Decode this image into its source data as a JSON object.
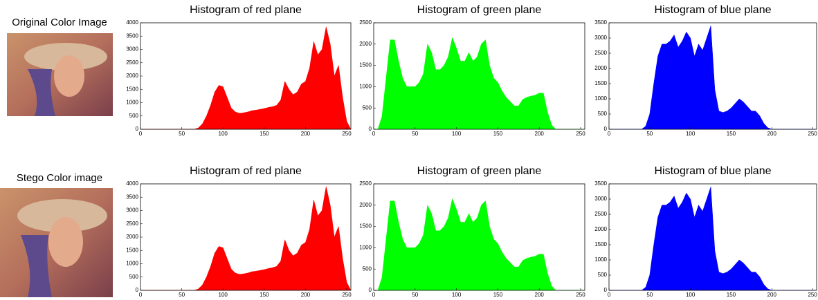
{
  "row_labels": [
    "Original Color Image",
    "Stego Color image"
  ],
  "chart_data": [
    {
      "type": "area",
      "title": "Histogram of red plane",
      "color": "#ff0000",
      "x": [
        0,
        5,
        10,
        15,
        20,
        25,
        30,
        35,
        40,
        45,
        50,
        55,
        60,
        65,
        70,
        75,
        80,
        85,
        90,
        95,
        100,
        105,
        110,
        115,
        120,
        125,
        130,
        135,
        140,
        145,
        150,
        155,
        160,
        165,
        170,
        175,
        180,
        185,
        190,
        195,
        200,
        205,
        210,
        215,
        220,
        225,
        230,
        235,
        240,
        245,
        250,
        255
      ],
      "values": [
        0,
        0,
        0,
        0,
        0,
        0,
        0,
        0,
        0,
        0,
        0,
        0,
        0,
        0,
        50,
        200,
        500,
        900,
        1400,
        1650,
        1600,
        1200,
        800,
        650,
        600,
        620,
        650,
        700,
        720,
        750,
        780,
        820,
        850,
        900,
        1100,
        1800,
        1500,
        1300,
        1400,
        1700,
        1800,
        2300,
        3300,
        2800,
        3000,
        3850,
        3200,
        2000,
        2400,
        1200,
        300,
        0
      ],
      "xlim": [
        0,
        255
      ],
      "ylim": [
        0,
        4000
      ],
      "xticks": [
        0,
        50,
        100,
        150,
        200,
        250
      ],
      "yticks": [
        0,
        500,
        1000,
        1500,
        2000,
        2500,
        3000,
        3500,
        4000
      ]
    },
    {
      "type": "area",
      "title": "Histogram of green plane",
      "color": "#00ff00",
      "x": [
        0,
        5,
        10,
        15,
        20,
        25,
        30,
        35,
        40,
        45,
        50,
        55,
        60,
        65,
        70,
        75,
        80,
        85,
        90,
        95,
        100,
        105,
        110,
        115,
        120,
        125,
        130,
        135,
        140,
        145,
        150,
        155,
        160,
        165,
        170,
        175,
        180,
        185,
        190,
        195,
        200,
        205,
        210,
        215,
        220,
        225,
        230,
        235,
        240,
        245,
        250,
        255
      ],
      "values": [
        0,
        0,
        300,
        1200,
        2100,
        2100,
        1600,
        1200,
        1000,
        1000,
        1000,
        1100,
        1300,
        2000,
        1800,
        1400,
        1400,
        1500,
        1700,
        2150,
        1900,
        1600,
        1600,
        1800,
        1600,
        1700,
        2000,
        2100,
        1500,
        1200,
        1100,
        900,
        750,
        650,
        550,
        550,
        700,
        750,
        780,
        800,
        850,
        850,
        400,
        100,
        0,
        0,
        0,
        0,
        0,
        0,
        0,
        0
      ],
      "xlim": [
        0,
        255
      ],
      "ylim": [
        0,
        2500
      ],
      "xticks": [
        0,
        50,
        100,
        150,
        200,
        250
      ],
      "yticks": [
        0,
        500,
        1000,
        1500,
        2000,
        2500
      ]
    },
    {
      "type": "area",
      "title": "Histogram of blue plane",
      "color": "#0000ff",
      "x": [
        0,
        5,
        10,
        15,
        20,
        25,
        30,
        35,
        40,
        45,
        50,
        55,
        60,
        65,
        70,
        75,
        80,
        85,
        90,
        95,
        100,
        105,
        110,
        115,
        120,
        125,
        130,
        135,
        140,
        145,
        150,
        155,
        160,
        165,
        170,
        175,
        180,
        185,
        190,
        195,
        200,
        205,
        210,
        215,
        220,
        225,
        230,
        235,
        240,
        245,
        250,
        255
      ],
      "values": [
        0,
        0,
        0,
        0,
        0,
        0,
        0,
        0,
        0,
        100,
        500,
        1500,
        2400,
        2800,
        2800,
        2900,
        3100,
        2700,
        2900,
        3200,
        3000,
        2400,
        2800,
        2600,
        3000,
        3400,
        1300,
        600,
        550,
        600,
        700,
        850,
        1000,
        900,
        750,
        600,
        600,
        450,
        200,
        50,
        0,
        0,
        0,
        0,
        0,
        0,
        0,
        0,
        0,
        0,
        0,
        0
      ],
      "xlim": [
        0,
        255
      ],
      "ylim": [
        0,
        3500
      ],
      "xticks": [
        0,
        50,
        100,
        150,
        200,
        250
      ],
      "yticks": [
        0,
        500,
        1000,
        1500,
        2000,
        2500,
        3000,
        3500
      ]
    },
    {
      "type": "area",
      "title": "Histogram of red plane",
      "color": "#ff0000",
      "x": [
        0,
        5,
        10,
        15,
        20,
        25,
        30,
        35,
        40,
        45,
        50,
        55,
        60,
        65,
        70,
        75,
        80,
        85,
        90,
        95,
        100,
        105,
        110,
        115,
        120,
        125,
        130,
        135,
        140,
        145,
        150,
        155,
        160,
        165,
        170,
        175,
        180,
        185,
        190,
        195,
        200,
        205,
        210,
        215,
        220,
        225,
        230,
        235,
        240,
        245,
        250,
        255
      ],
      "values": [
        0,
        0,
        0,
        0,
        0,
        0,
        0,
        0,
        0,
        0,
        0,
        0,
        0,
        0,
        50,
        200,
        500,
        900,
        1400,
        1650,
        1600,
        1200,
        800,
        650,
        600,
        620,
        650,
        700,
        720,
        750,
        780,
        820,
        850,
        900,
        1100,
        1900,
        1500,
        1300,
        1400,
        1700,
        1800,
        2300,
        3400,
        2800,
        3000,
        3900,
        3200,
        2000,
        2400,
        1200,
        300,
        0
      ],
      "xlim": [
        0,
        255
      ],
      "ylim": [
        0,
        4000
      ],
      "xticks": [
        0,
        50,
        100,
        150,
        200,
        250
      ],
      "yticks": [
        0,
        500,
        1000,
        1500,
        2000,
        2500,
        3000,
        3500,
        4000
      ]
    },
    {
      "type": "area",
      "title": "Histogram of green plane",
      "color": "#00ff00",
      "x": [
        0,
        5,
        10,
        15,
        20,
        25,
        30,
        35,
        40,
        45,
        50,
        55,
        60,
        65,
        70,
        75,
        80,
        85,
        90,
        95,
        100,
        105,
        110,
        115,
        120,
        125,
        130,
        135,
        140,
        145,
        150,
        155,
        160,
        165,
        170,
        175,
        180,
        185,
        190,
        195,
        200,
        205,
        210,
        215,
        220,
        225,
        230,
        235,
        240,
        245,
        250,
        255
      ],
      "values": [
        0,
        0,
        300,
        1200,
        2100,
        2100,
        1600,
        1200,
        1000,
        1000,
        1000,
        1100,
        1300,
        2000,
        1800,
        1400,
        1400,
        1500,
        1700,
        2150,
        1900,
        1600,
        1600,
        1800,
        1600,
        1700,
        2000,
        2100,
        1500,
        1200,
        1100,
        900,
        750,
        650,
        550,
        550,
        700,
        750,
        780,
        800,
        850,
        850,
        400,
        100,
        0,
        0,
        0,
        0,
        0,
        0,
        0,
        0
      ],
      "xlim": [
        0,
        255
      ],
      "ylim": [
        0,
        2500
      ],
      "xticks": [
        0,
        50,
        100,
        150,
        200,
        250
      ],
      "yticks": [
        0,
        500,
        1000,
        1500,
        2000,
        2500
      ]
    },
    {
      "type": "area",
      "title": "Histogram of blue plane",
      "color": "#0000ff",
      "x": [
        0,
        5,
        10,
        15,
        20,
        25,
        30,
        35,
        40,
        45,
        50,
        55,
        60,
        65,
        70,
        75,
        80,
        85,
        90,
        95,
        100,
        105,
        110,
        115,
        120,
        125,
        130,
        135,
        140,
        145,
        150,
        155,
        160,
        165,
        170,
        175,
        180,
        185,
        190,
        195,
        200,
        205,
        210,
        215,
        220,
        225,
        230,
        235,
        240,
        245,
        250,
        255
      ],
      "values": [
        0,
        0,
        0,
        0,
        0,
        0,
        0,
        0,
        0,
        100,
        500,
        1500,
        2400,
        2800,
        2800,
        2900,
        3100,
        2700,
        2900,
        3200,
        3000,
        2400,
        2800,
        2600,
        3000,
        3400,
        1300,
        600,
        550,
        600,
        700,
        850,
        1000,
        900,
        750,
        600,
        600,
        450,
        200,
        50,
        0,
        0,
        0,
        0,
        0,
        0,
        0,
        0,
        0,
        0,
        0,
        0
      ],
      "xlim": [
        0,
        255
      ],
      "ylim": [
        0,
        3500
      ],
      "xticks": [
        0,
        50,
        100,
        150,
        200,
        250
      ],
      "yticks": [
        0,
        500,
        1000,
        1500,
        2000,
        2500,
        3000,
        3500
      ]
    }
  ]
}
